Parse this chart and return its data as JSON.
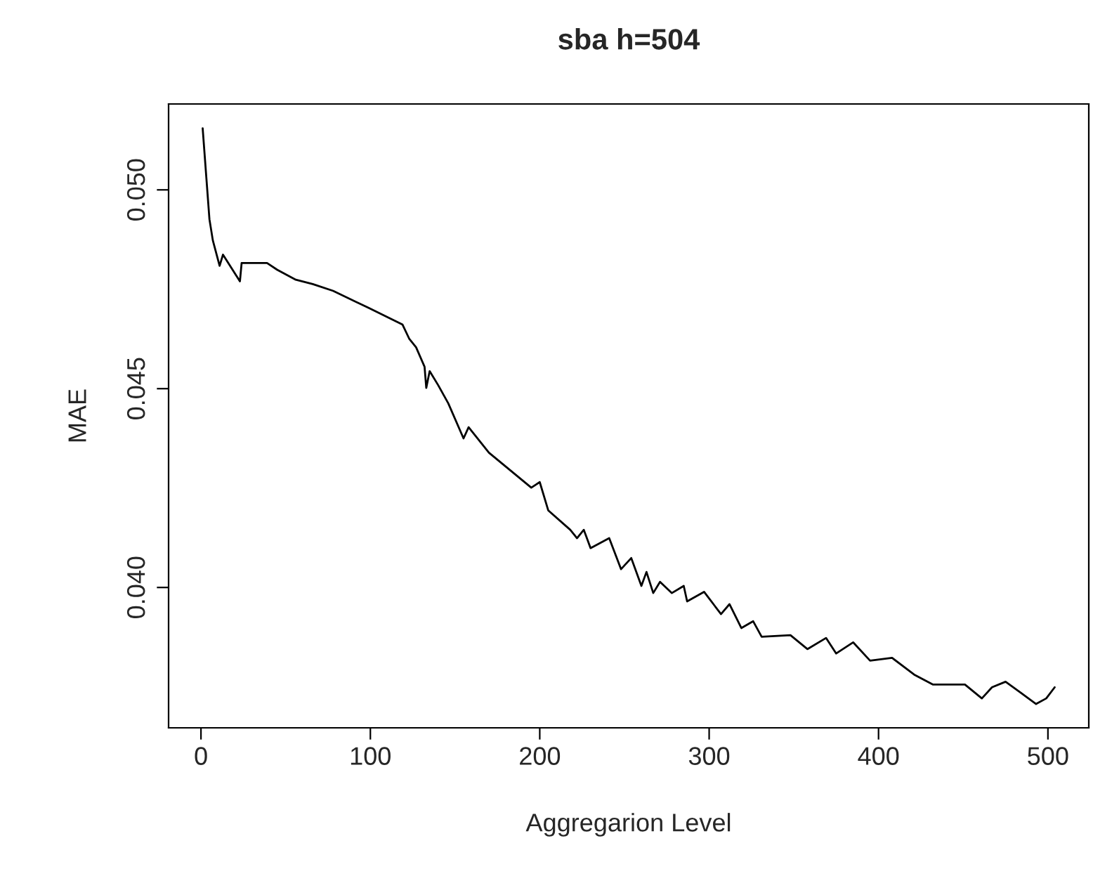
{
  "chart_data": {
    "type": "line",
    "title": "sba h=504",
    "xlabel": "Aggregarion Level",
    "ylabel": "MAE",
    "series": [
      {
        "color": "#000000",
        "x": [
          1,
          5,
          7,
          11,
          13,
          23,
          24,
          34,
          39,
          45,
          56,
          66,
          78,
          99,
          119,
          123,
          127,
          132,
          133,
          135,
          140,
          146,
          155,
          158,
          170,
          195,
          200,
          205,
          218,
          222,
          226,
          230,
          241,
          248,
          254,
          260,
          263,
          267,
          271,
          278,
          285,
          287,
          297,
          307,
          312,
          319,
          326,
          331,
          348,
          358,
          369,
          375,
          385,
          395,
          408,
          421,
          432,
          451,
          461,
          467,
          475,
          484,
          493,
          499,
          504
        ],
        "values": [
          0.05155,
          0.04926,
          0.04873,
          0.04809,
          0.04837,
          0.0477,
          0.04816,
          0.04816,
          0.04816,
          0.04799,
          0.04774,
          0.04763,
          0.04746,
          0.04703,
          0.04661,
          0.04625,
          0.04604,
          0.04555,
          0.04502,
          0.04544,
          0.04509,
          0.04463,
          0.04375,
          0.04403,
          0.04339,
          0.04251,
          0.04265,
          0.04194,
          0.04145,
          0.04124,
          0.04145,
          0.04099,
          0.04124,
          0.04046,
          0.04074,
          0.04004,
          0.04039,
          0.03986,
          0.04014,
          0.03986,
          0.04004,
          0.03965,
          0.03989,
          0.03933,
          0.03958,
          0.03898,
          0.03915,
          0.03876,
          0.0388,
          0.03845,
          0.03873,
          0.03834,
          0.03862,
          0.03816,
          0.03823,
          0.03781,
          0.03756,
          0.03756,
          0.03721,
          0.03749,
          0.03763,
          0.03735,
          0.03707,
          0.03721,
          0.03749
        ]
      }
    ],
    "xlim": [
      -19.12,
      524.12
    ],
    "ylim": [
      0.03647,
      0.05216
    ],
    "xticks": [
      0,
      100,
      200,
      300,
      400,
      500
    ],
    "yticks": [
      {
        "value": 0.04,
        "label": "0.040"
      },
      {
        "value": 0.045,
        "label": "0.045"
      },
      {
        "value": 0.05,
        "label": "0.050"
      }
    ],
    "grid": false
  }
}
